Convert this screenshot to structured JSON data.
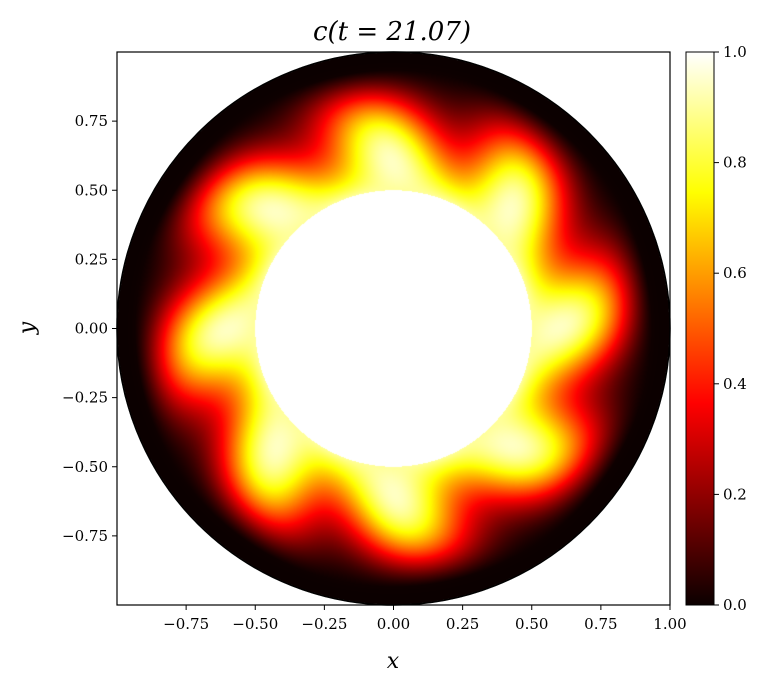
{
  "chart_data": {
    "type": "heatmap",
    "title": "c(t = 21.07)",
    "xlabel": "x",
    "ylabel": "y",
    "xlim": [
      -1.0,
      1.0
    ],
    "ylim": [
      -1.0,
      1.0
    ],
    "x_ticks": [
      {
        "value": -0.75,
        "label": "−0.75"
      },
      {
        "value": -0.5,
        "label": "−0.50"
      },
      {
        "value": -0.25,
        "label": "−0.25"
      },
      {
        "value": 0.0,
        "label": "0.00"
      },
      {
        "value": 0.25,
        "label": "0.25"
      },
      {
        "value": 0.5,
        "label": "0.50"
      },
      {
        "value": 0.75,
        "label": "0.75"
      },
      {
        "value": 1.0,
        "label": "1.00"
      }
    ],
    "y_ticks": [
      {
        "value": 0.75,
        "label": "0.75"
      },
      {
        "value": 0.5,
        "label": "0.50"
      },
      {
        "value": 0.25,
        "label": "0.25"
      },
      {
        "value": 0.0,
        "label": "0.00"
      },
      {
        "value": -0.25,
        "label": "−0.25"
      },
      {
        "value": -0.5,
        "label": "−0.50"
      },
      {
        "value": -0.75,
        "label": "−0.75"
      }
    ],
    "colorbar": {
      "colormap": "hot",
      "range": [
        0.0,
        1.0
      ],
      "ticks": [
        {
          "value": 0.0,
          "label": "0.0"
        },
        {
          "value": 0.2,
          "label": "0.2"
        },
        {
          "value": 0.4,
          "label": "0.4"
        },
        {
          "value": 0.6,
          "label": "0.6"
        },
        {
          "value": 0.8,
          "label": "0.8"
        },
        {
          "value": 1.0,
          "label": "1.0"
        }
      ]
    },
    "field": {
      "domain": "annulus",
      "inner_radius": 0.5,
      "outer_radius": 1.0,
      "inner_boundary_value": 1.0,
      "outer_boundary_value": 0.0,
      "angular_lobes": 8,
      "lobe_twist_deg": 15,
      "inner_region_color": "#ffffff",
      "outer_circle_color": "#000000"
    },
    "grid": false
  }
}
